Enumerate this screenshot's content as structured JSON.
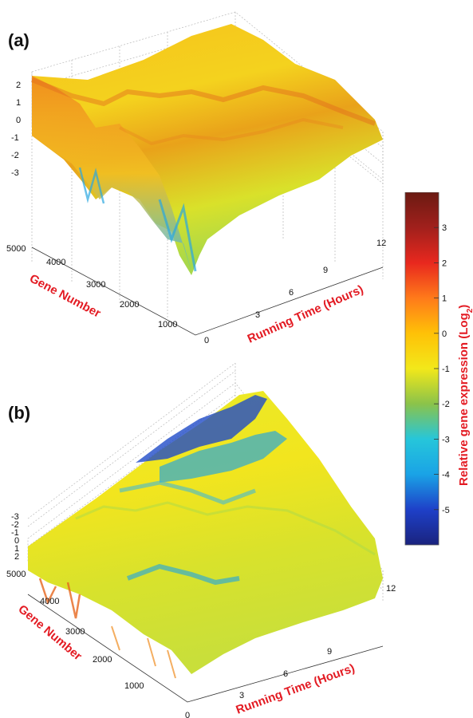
{
  "panels": [
    {
      "label": "(a)"
    },
    {
      "label": "(b)"
    }
  ],
  "chart_data": [
    {
      "type": "surface3d",
      "panel": "(a)",
      "xlabel": "Running Time (Hours)",
      "ylabel": "Gene Number",
      "x_ticks": [
        "0",
        "3",
        "6",
        "9",
        "12"
      ],
      "y_ticks": [
        "1000",
        "2000",
        "3000",
        "4000",
        "5000"
      ],
      "z_ticks": [
        "2",
        "1",
        "0",
        "-1",
        "-2",
        "-3"
      ],
      "xlim": [
        0,
        12
      ],
      "ylim": [
        0,
        5000
      ],
      "zlim": [
        -6,
        4
      ]
    },
    {
      "type": "surface3d",
      "panel": "(b)",
      "xlabel": "Running Time (Hours)",
      "ylabel": "Gene Number",
      "x_ticks": [
        "0",
        "3",
        "6",
        "9",
        "12"
      ],
      "y_ticks": [
        "1000",
        "2000",
        "3000",
        "4000",
        "5000"
      ],
      "z_ticks": [
        "-3",
        "-2",
        "-1",
        "0",
        "1",
        "2"
      ],
      "xlim": [
        0,
        12
      ],
      "ylim": [
        0,
        5000
      ],
      "zlim": [
        -6,
        4
      ]
    }
  ],
  "colorbar": {
    "label": "Relative gene expression (Log",
    "label_sub": "2",
    "label_tail": ")",
    "ticks": [
      "3",
      "2",
      "1",
      "0",
      "-1",
      "-2",
      "-3",
      "-4",
      "-5"
    ],
    "range": [
      -6,
      4
    ],
    "colors": [
      "#1a237e",
      "#1e40c8",
      "#1aa3e6",
      "#26c6da",
      "#8bc34a",
      "#f2e81a",
      "#ffc107",
      "#ff7a1a",
      "#e8281e",
      "#a1201c",
      "#6b1a12"
    ]
  }
}
